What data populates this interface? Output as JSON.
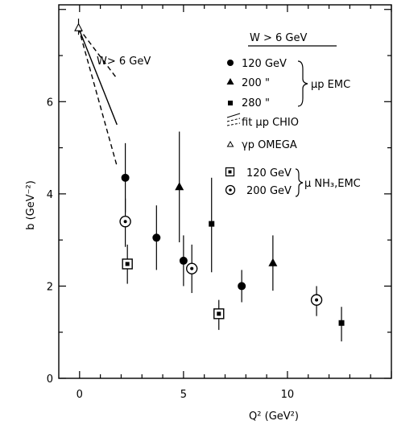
{
  "chart_data": {
    "type": "scatter",
    "xlabel": "Q² (GeV²)",
    "ylabel": "b (GeV⁻²)",
    "xlim": [
      -1,
      15
    ],
    "ylim": [
      0,
      8.1
    ],
    "xticks": [
      0,
      5,
      10
    ],
    "yticks": [
      0,
      2,
      4,
      6
    ],
    "xtick_labels": [
      "0",
      "5",
      "10"
    ],
    "ytick_labels": [
      "0",
      "2",
      "4",
      "6"
    ],
    "annotation": "W> 6 GeV",
    "legend": {
      "title": "W > 6 GeV",
      "entries": [
        {
          "marker": "filled-circle",
          "text": "120 GeV"
        },
        {
          "marker": "filled-triangle",
          "text": "200  \""
        },
        {
          "marker": "filled-square",
          "text": "280  \""
        },
        {
          "marker": "dashed-lines",
          "text": "fit  µp CHIO"
        },
        {
          "marker": "open-triangle",
          "text": "γp OMEGA"
        },
        {
          "marker": "boxed-square",
          "text": "120 GeV"
        },
        {
          "marker": "circled-dot",
          "text": "200 GeV"
        }
      ],
      "group1_label": "µp EMC",
      "group2_label": "µ NH₃,EMC"
    },
    "series": [
      {
        "name": "120 GeV µp EMC",
        "marker": "filled-circle",
        "points": [
          {
            "x": 2.2,
            "y": 4.35,
            "ylo": 3.6,
            "yhi": 5.1
          },
          {
            "x": 3.7,
            "y": 3.05,
            "ylo": 2.35,
            "yhi": 3.75
          },
          {
            "x": 5.0,
            "y": 2.55,
            "ylo": 2.0,
            "yhi": 3.1
          },
          {
            "x": 7.8,
            "y": 2.0,
            "ylo": 1.65,
            "yhi": 2.35
          }
        ]
      },
      {
        "name": "200 GeV µp EMC",
        "marker": "filled-triangle",
        "points": [
          {
            "x": 4.8,
            "y": 4.15,
            "ylo": 2.95,
            "yhi": 5.35
          },
          {
            "x": 9.3,
            "y": 2.5,
            "ylo": 1.9,
            "yhi": 3.1
          }
        ]
      },
      {
        "name": "280 GeV µp EMC",
        "marker": "filled-square",
        "points": [
          {
            "x": 6.35,
            "y": 3.35,
            "ylo": 2.3,
            "yhi": 4.35
          },
          {
            "x": 12.6,
            "y": 1.2,
            "ylo": 0.8,
            "yhi": 1.55
          }
        ]
      },
      {
        "name": "120 GeV µ NH₃,EMC",
        "marker": "boxed-square",
        "points": [
          {
            "x": 2.3,
            "y": 2.48,
            "ylo": 2.05,
            "yhi": 2.9
          },
          {
            "x": 6.7,
            "y": 1.4,
            "ylo": 1.05,
            "yhi": 1.7
          }
        ]
      },
      {
        "name": "200 GeV µ NH₃,EMC",
        "marker": "circled-dot",
        "points": [
          {
            "x": 2.2,
            "y": 3.4,
            "ylo": 2.85,
            "yhi": 3.9
          },
          {
            "x": 5.4,
            "y": 2.38,
            "ylo": 1.85,
            "yhi": 2.9
          },
          {
            "x": 11.4,
            "y": 1.7,
            "ylo": 1.35,
            "yhi": 2.0
          }
        ]
      },
      {
        "name": "γp OMEGA",
        "marker": "open-triangle",
        "points": [
          {
            "x": -0.05,
            "y": 7.6,
            "ylo": 7.45,
            "yhi": 7.8
          }
        ]
      }
    ],
    "fit_lines": [
      {
        "style": "solid",
        "points": [
          [
            -0.05,
            7.6
          ],
          [
            1.8,
            5.5
          ]
        ]
      },
      {
        "style": "dashed",
        "points": [
          [
            -0.05,
            7.6
          ],
          [
            1.8,
            6.5
          ]
        ]
      },
      {
        "style": "dashed",
        "points": [
          [
            -0.05,
            7.6
          ],
          [
            1.8,
            4.6
          ]
        ]
      }
    ]
  }
}
